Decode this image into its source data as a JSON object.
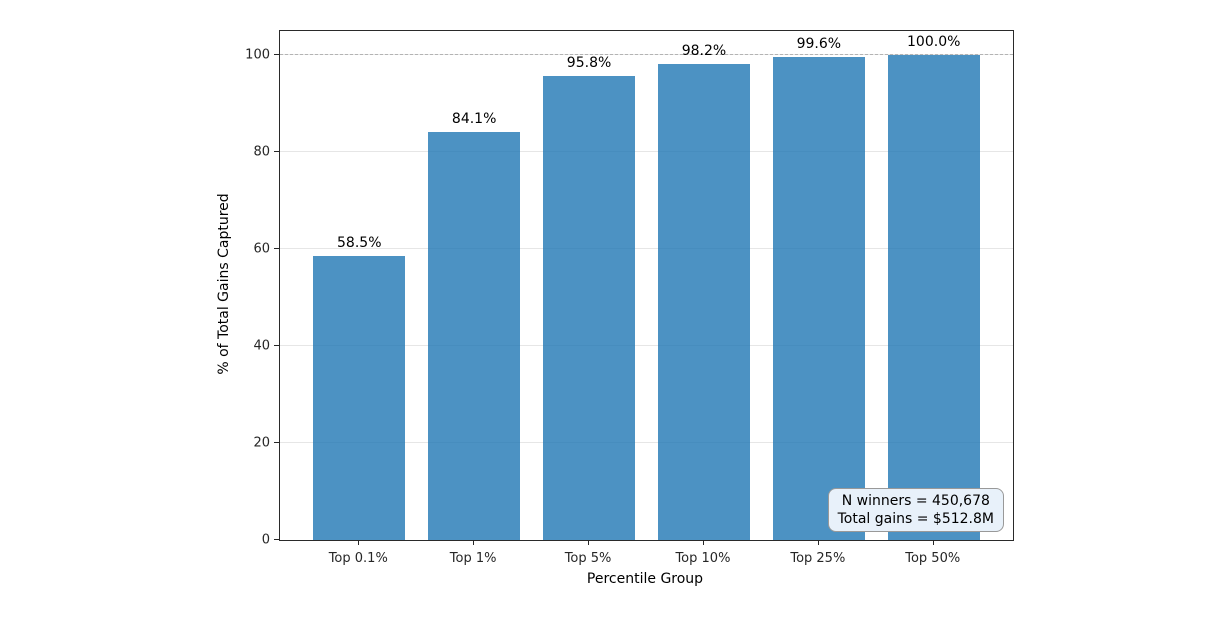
{
  "chart_data": {
    "type": "bar",
    "title": "",
    "xlabel": "Percentile Group",
    "ylabel": "% of Total Gains Captured",
    "categories": [
      "Top 0.1%",
      "Top 1%",
      "Top 5%",
      "Top 10%",
      "Top 25%",
      "Top 50%"
    ],
    "values": [
      58.5,
      84.1,
      95.8,
      98.2,
      99.6,
      100.0
    ],
    "bar_labels": [
      "58.5%",
      "84.1%",
      "95.8%",
      "98.2%",
      "99.6%",
      "100.0%"
    ],
    "yticks": [
      0,
      20,
      40,
      60,
      80,
      100
    ],
    "ylim": [
      0,
      105
    ],
    "grid": true,
    "legend_position": "none",
    "bar_color": "#1f77b4",
    "bar_alpha": 0.8,
    "reference_line": {
      "y": 100,
      "style": "dashed",
      "color": "#b3b3b3"
    },
    "annotation": {
      "lines": [
        "N winners = 450,678",
        "Total gains = $512.8M"
      ],
      "background": "#e8f1fa",
      "border_color": "#999999"
    }
  }
}
